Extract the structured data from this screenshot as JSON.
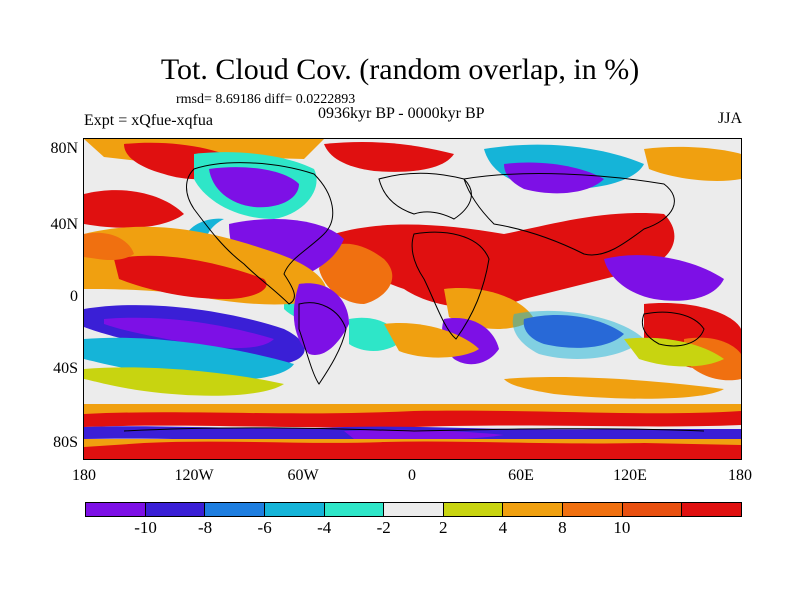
{
  "title": "Tot. Cloud Cov. (random overlap, in %)",
  "stats": "rmsd= 8.69186  diff= 0.0222893",
  "experiment": "Expt = xQfue-xqfua",
  "period": "0936kyr BP - 0000kyr BP",
  "season": "JJA",
  "lat_labels": [
    "80N",
    "40N",
    "0",
    "40S",
    "80S"
  ],
  "lon_labels": [
    "180",
    "120W",
    "60W",
    "0",
    "60E",
    "120E",
    "180"
  ],
  "colorbar": {
    "labels": [
      "-10",
      "-8",
      "-6",
      "-4",
      "-2",
      "2",
      "4",
      "8",
      "10"
    ],
    "colors": [
      "#7d10e6",
      "#3a1fd6",
      "#1e7ee0",
      "#15b4d8",
      "#2ee6c8",
      "#ececec",
      "#c8d410",
      "#f0a010",
      "#f07010",
      "#e85010",
      "#e01010"
    ]
  },
  "chart_data": {
    "type": "heatmap",
    "title": "Tot. Cloud Cov. (random overlap, in %)",
    "variable": "Total cloud cover difference",
    "units": "%",
    "projection": "cylindrical equidistant",
    "lon_range": [
      -180,
      180
    ],
    "lat_range": [
      -90,
      90
    ],
    "contour_levels": [
      -10,
      -8,
      -6,
      -4,
      -2,
      2,
      4,
      8,
      10
    ],
    "rmsd": 8.69186,
    "diff": 0.0222893,
    "experiment": "xQfue-xqfua",
    "period": "0936kyr BP - 0000kyr BP",
    "season": "JJA"
  }
}
